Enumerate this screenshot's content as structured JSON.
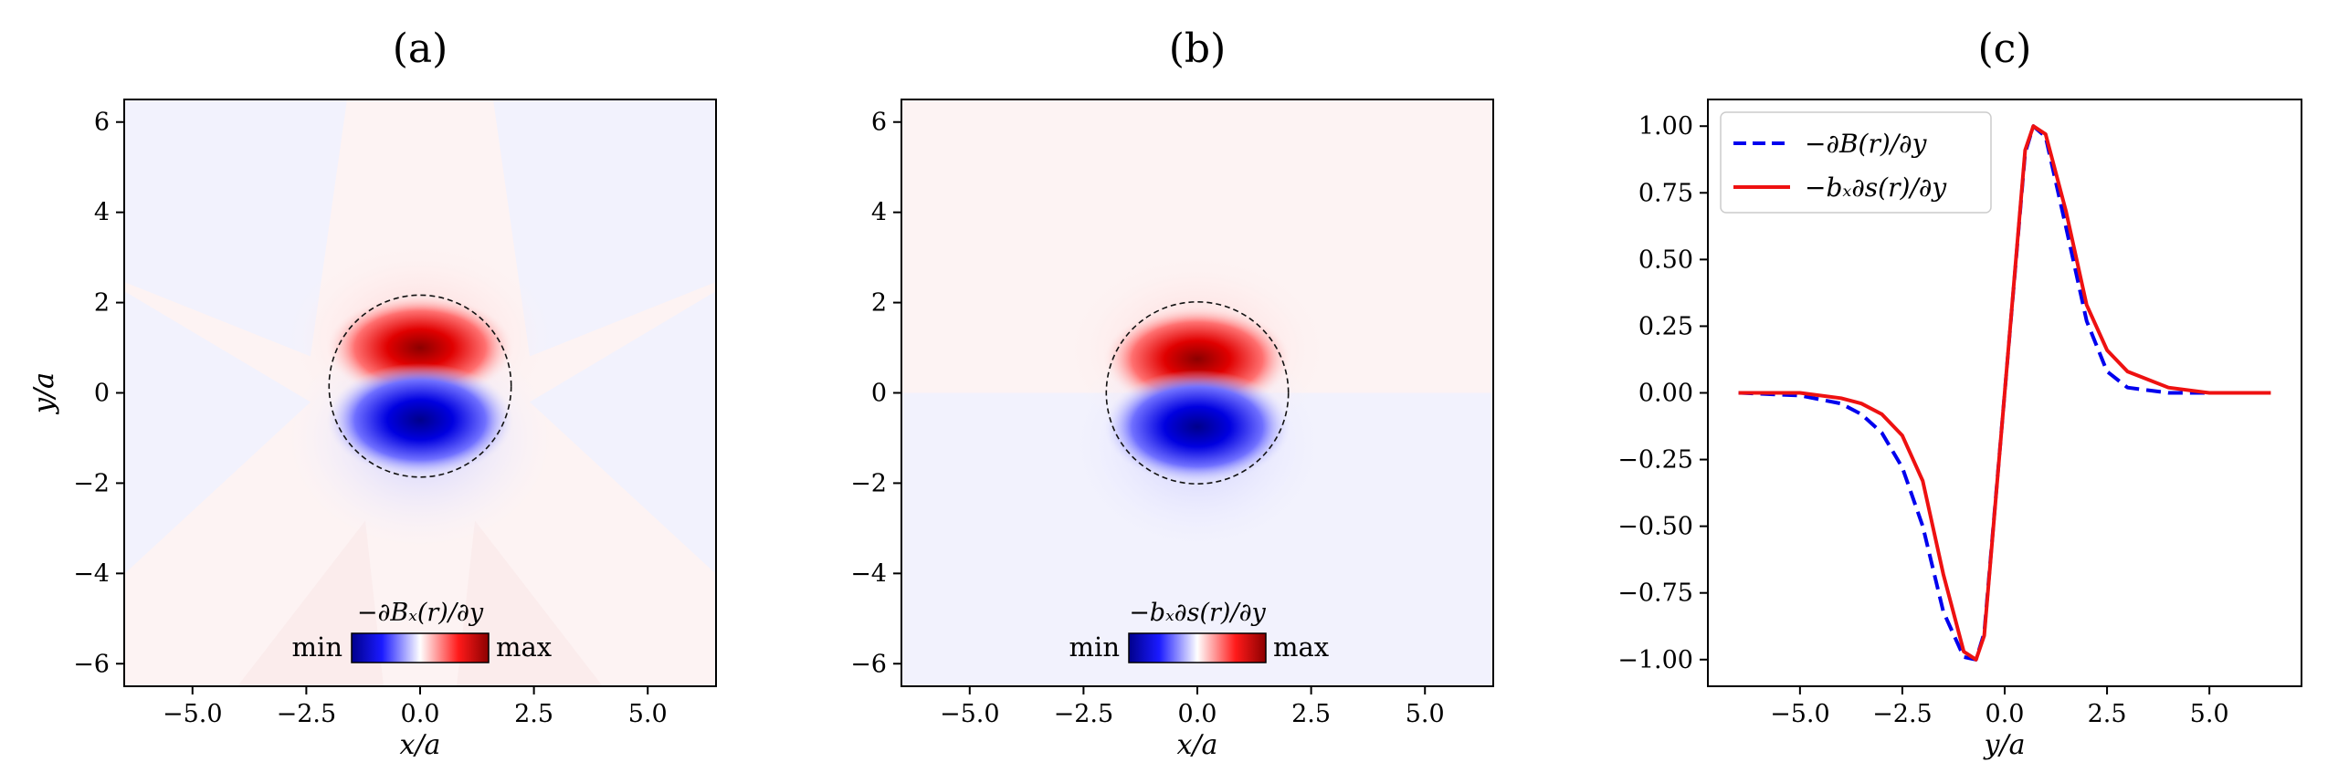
{
  "panels": [
    {
      "id": "a",
      "title": "(a)",
      "xlabel": "x/a",
      "ylabel": "y/a",
      "colorbar": {
        "label": "−∂Bₓ(r)/∂y",
        "min_label": "min",
        "max_label": "max"
      }
    },
    {
      "id": "b",
      "title": "(b)",
      "xlabel": "x/a",
      "ylabel": "y/a",
      "colorbar": {
        "label": "−bₓ∂s(r)/∂y",
        "min_label": "min",
        "max_label": "max"
      }
    },
    {
      "id": "c",
      "title": "(c)",
      "xlabel": "y/a",
      "ylabel": ""
    }
  ],
  "colors": {
    "min": "#00008b",
    "mid": "#ffffff",
    "max": "#8b0000",
    "blue_line": "#0000ee",
    "red_line": "#ee1111"
  },
  "chart_data": [
    {
      "type": "heatmap",
      "panel": "a",
      "title": "(a)",
      "xlabel": "x/a",
      "ylabel": "y/a",
      "xlim": [
        -6.5,
        6.5
      ],
      "ylim": [
        -6.5,
        6.5
      ],
      "xticks": [
        -5.0,
        -2.5,
        0.0,
        2.5,
        5.0
      ],
      "xtick_labels": [
        "−5.0",
        "−2.5",
        "0.0",
        "2.5",
        "5.0"
      ],
      "yticks": [
        -6,
        -4,
        -2,
        0,
        2,
        4,
        6
      ],
      "ytick_labels": [
        "−6",
        "−4",
        "−2",
        "0",
        "2",
        "4",
        "6"
      ],
      "field": "−∂Bₓ(r)/∂y",
      "positive_lobe_center": [
        0.0,
        1.0
      ],
      "negative_lobe_center": [
        0.0,
        -0.6
      ],
      "circle": {
        "center": [
          0.0,
          0.15
        ],
        "radius": 2.0
      },
      "colorbar": {
        "label": "−∂Bₓ(r)/∂y",
        "min_label": "min",
        "max_label": "max"
      }
    },
    {
      "type": "heatmap",
      "panel": "b",
      "title": "(b)",
      "xlabel": "x/a",
      "ylabel": "y/a",
      "xlim": [
        -6.5,
        6.5
      ],
      "ylim": [
        -6.5,
        6.5
      ],
      "xticks": [
        -5.0,
        -2.5,
        0.0,
        2.5,
        5.0
      ],
      "xtick_labels": [
        "−5.0",
        "−2.5",
        "0.0",
        "2.5",
        "5.0"
      ],
      "yticks": [
        -6,
        -4,
        -2,
        0,
        2,
        4,
        6
      ],
      "ytick_labels": [
        "−6",
        "−4",
        "−2",
        "0",
        "2",
        "4",
        "6"
      ],
      "field": "−bₓ∂s(r)/∂y",
      "positive_lobe_center": [
        0.0,
        0.75
      ],
      "negative_lobe_center": [
        0.0,
        -0.75
      ],
      "circle": {
        "center": [
          0.0,
          0.0
        ],
        "radius": 2.0
      },
      "colorbar": {
        "label": "−bₓ∂s(r)/∂y",
        "min_label": "min",
        "max_label": "max"
      }
    },
    {
      "type": "line",
      "panel": "c",
      "title": "(c)",
      "xlabel": "y/a",
      "ylabel": "",
      "xlim": [
        -7.25,
        7.25
      ],
      "ylim": [
        -1.1,
        1.1
      ],
      "xticks": [
        -5.0,
        -2.5,
        0.0,
        2.5,
        5.0
      ],
      "xtick_labels": [
        "−5.0",
        "−2.5",
        "0.0",
        "2.5",
        "5.0"
      ],
      "yticks": [
        -1.0,
        -0.75,
        -0.5,
        -0.25,
        0.0,
        0.25,
        0.5,
        0.75,
        1.0
      ],
      "ytick_labels": [
        "−1.00",
        "−0.75",
        "−0.50",
        "−0.25",
        "0.00",
        "0.25",
        "0.50",
        "0.75",
        "1.00"
      ],
      "legend_position": "top-left",
      "series": [
        {
          "name": "−∂B(r)/∂y",
          "style": "dashed",
          "color": "#0000ee",
          "x": [
            -6.5,
            -5.0,
            -4.0,
            -3.5,
            -3.0,
            -2.5,
            -2.0,
            -1.5,
            -1.0,
            -0.7,
            -0.5,
            0.0,
            0.5,
            0.7,
            1.0,
            1.5,
            2.0,
            2.5,
            3.0,
            4.0,
            5.0,
            6.5
          ],
          "y": [
            0.0,
            -0.01,
            -0.04,
            -0.08,
            -0.15,
            -0.28,
            -0.5,
            -0.82,
            -0.99,
            -1.0,
            -0.9,
            0.0,
            0.9,
            1.0,
            0.96,
            0.62,
            0.27,
            0.08,
            0.02,
            0.0,
            0.0,
            0.0
          ]
        },
        {
          "name": "−bₓ∂s(r)/∂y",
          "style": "solid",
          "color": "#ee1111",
          "x": [
            -6.5,
            -5.0,
            -4.0,
            -3.5,
            -3.0,
            -2.5,
            -2.0,
            -1.5,
            -1.0,
            -0.7,
            -0.5,
            0.0,
            0.5,
            0.7,
            1.0,
            1.5,
            2.0,
            2.5,
            3.0,
            4.0,
            5.0,
            6.5
          ],
          "y": [
            0.0,
            0.0,
            -0.02,
            -0.04,
            -0.08,
            -0.16,
            -0.33,
            -0.68,
            -0.97,
            -1.0,
            -0.91,
            0.0,
            0.91,
            1.0,
            0.97,
            0.68,
            0.33,
            0.16,
            0.08,
            0.02,
            0.0,
            0.0
          ]
        }
      ]
    }
  ]
}
